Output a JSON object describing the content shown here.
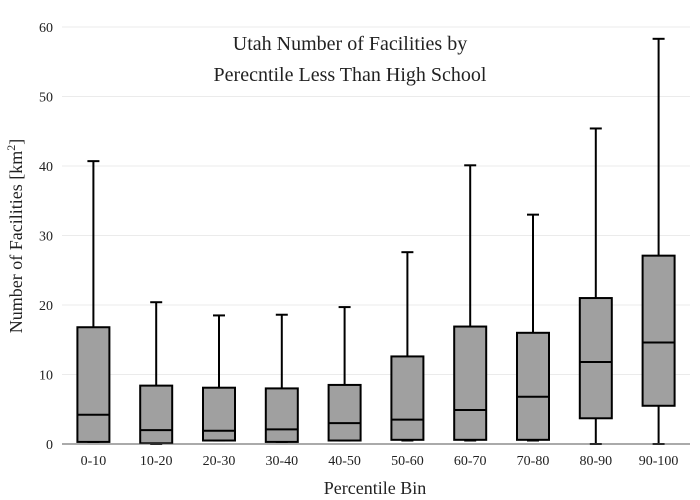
{
  "chart_data": {
    "type": "box",
    "title": [
      "Utah Number of Facilities by",
      "Perecntile Less Than High School"
    ],
    "xlabel": "Percentile Bin",
    "ylabel_main": "Number of Facilities  [km",
    "ylabel_sup": "2",
    "ylabel_end": "]",
    "ylim": [
      0,
      60
    ],
    "yticks": [
      0,
      10,
      20,
      30,
      40,
      50,
      60
    ],
    "grid": true,
    "box_color": "#a0a0a0",
    "line_color": "#000000",
    "categories": [
      "0-10",
      "10-20",
      "20-30",
      "30-40",
      "40-50",
      "50-60",
      "60-70",
      "70-80",
      "80-90",
      "90-100"
    ],
    "boxes": [
      {
        "category": "0-10",
        "min": 0.3,
        "q1": 0.3,
        "median": 4.2,
        "q3": 16.8,
        "max": 40.7
      },
      {
        "category": "10-20",
        "min": 0.0,
        "q1": 0.1,
        "median": 2.0,
        "q3": 8.4,
        "max": 20.4
      },
      {
        "category": "20-30",
        "min": 0.5,
        "q1": 0.5,
        "median": 1.9,
        "q3": 8.1,
        "max": 18.5
      },
      {
        "category": "30-40",
        "min": 0.3,
        "q1": 0.3,
        "median": 2.1,
        "q3": 8.0,
        "max": 18.6
      },
      {
        "category": "40-50",
        "min": 0.5,
        "q1": 0.5,
        "median": 3.0,
        "q3": 8.5,
        "max": 19.7
      },
      {
        "category": "50-60",
        "min": 0.5,
        "q1": 0.6,
        "median": 3.5,
        "q3": 12.6,
        "max": 27.6
      },
      {
        "category": "60-70",
        "min": 0.5,
        "q1": 0.6,
        "median": 4.9,
        "q3": 16.9,
        "max": 40.1
      },
      {
        "category": "70-80",
        "min": 0.5,
        "q1": 0.6,
        "median": 6.8,
        "q3": 16.0,
        "max": 33.0
      },
      {
        "category": "80-90",
        "min": 0.0,
        "q1": 3.7,
        "median": 11.8,
        "q3": 21.0,
        "max": 45.4
      },
      {
        "category": "90-100",
        "min": 0.0,
        "q1": 5.5,
        "median": 14.6,
        "q3": 27.1,
        "max": 58.3
      }
    ]
  }
}
